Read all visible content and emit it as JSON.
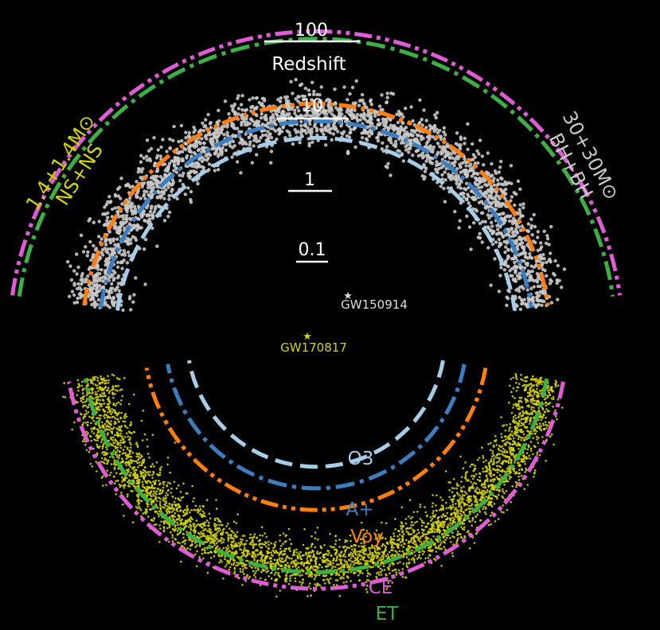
{
  "chart_data": {
    "type": "scatter",
    "title": "",
    "radial_axis": {
      "label": "Redshift",
      "scale": "log",
      "ticks": [
        "0.1",
        "1",
        "10",
        "100"
      ]
    },
    "populations": [
      {
        "key": "nsns",
        "label_top": "1.4+1.4M⊙",
        "label_bottom": "NS+NS",
        "color": "#d4d400",
        "side": "left"
      },
      {
        "key": "bbh",
        "label_top": "30+30M⊙",
        "label_bottom": "BH+BH",
        "color": "#c8c8c8",
        "side": "right"
      }
    ],
    "detectors": [
      {
        "name": "O3",
        "color": "#a6cee8",
        "style": "dashed",
        "horizon_nsns": 0.1,
        "horizon_bbh": 1
      },
      {
        "name": "A+",
        "color": "#3a7fc0",
        "style": "dash-dot",
        "horizon_nsns": 0.2,
        "horizon_bbh": 2
      },
      {
        "name": "Voy",
        "color": "#ff7f0e",
        "style": "dash-dot-dot",
        "horizon_nsns": 0.4,
        "horizon_bbh": 4
      },
      {
        "name": "CE",
        "color": "#e05cd6",
        "style": "dash-dot-dot",
        "horizon_nsns": 8,
        "horizon_bbh": 80
      },
      {
        "name": "ET",
        "color": "#3cb043",
        "style": "dash-dot",
        "horizon_nsns": 4,
        "horizon_bbh": 60
      }
    ],
    "events": [
      {
        "name": "GW150914",
        "color": "#dddddd",
        "redshift": 0.09
      },
      {
        "name": "GW170817",
        "color": "#d4d400",
        "redshift": 0.01
      }
    ],
    "legend": "labels placed beside arcs"
  }
}
